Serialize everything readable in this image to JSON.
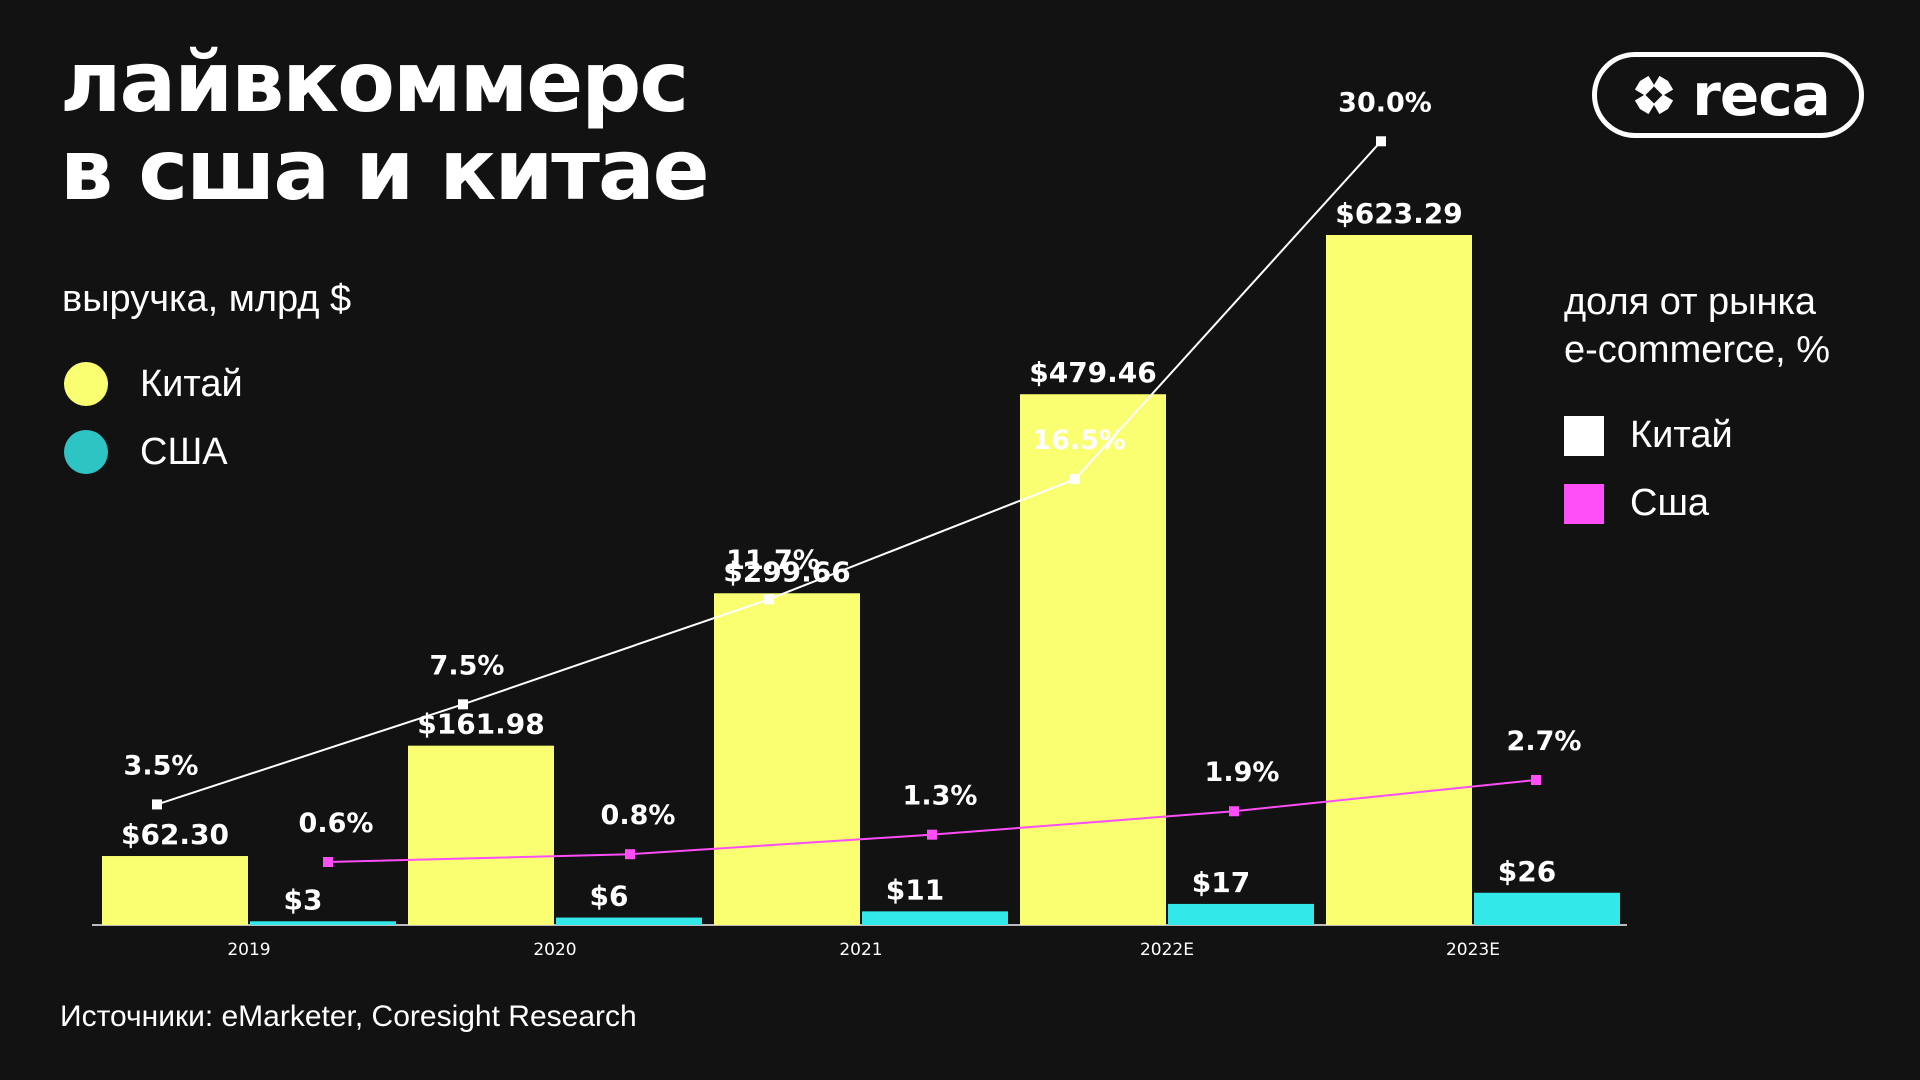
{
  "header": {
    "title_line1": "лайвкоммерс",
    "title_line2": "в сша и китае",
    "logo_text": "reca"
  },
  "left_legend": {
    "label": "выручка, млрд $",
    "items": [
      {
        "label": "Китай",
        "color": "#faff72"
      },
      {
        "label": "США",
        "color": "#2ec4c4"
      }
    ]
  },
  "right_legend": {
    "label_line1": "доля от рынка",
    "label_line2": "e-commerce, %",
    "items": [
      {
        "label": "Китай",
        "color": "#ffffff"
      },
      {
        "label": "Сша",
        "color": "#ff4df8"
      }
    ]
  },
  "footer": {
    "source": "Источники: eMarketer, Coresight Research"
  },
  "chart_data": {
    "type": "bar",
    "categories": [
      "2019",
      "2020",
      "2021",
      "2022E",
      "2023E"
    ],
    "bar_series": [
      {
        "name": "Китай",
        "color": "#faff72",
        "values": [
          62.3,
          161.98,
          299.66,
          479.46,
          623.29
        ],
        "labels": [
          "$62.30",
          "$161.98",
          "$299.66",
          "$479.46",
          "$623.29"
        ]
      },
      {
        "name": "США",
        "color": "#33e8e8",
        "values": [
          3,
          6,
          11,
          17,
          26
        ],
        "labels": [
          "$3",
          "$6",
          "$11",
          "$17",
          "$26"
        ]
      }
    ],
    "line_series": [
      {
        "name": "Китай",
        "color": "#ffffff",
        "values": [
          3.5,
          7.5,
          11.7,
          16.5,
          30.0
        ],
        "labels": [
          "3.5%",
          "7.5%",
          "11.7%",
          "16.5%",
          "30.0%"
        ]
      },
      {
        "name": "Сша",
        "color": "#ff4df8",
        "values": [
          0.6,
          0.8,
          1.3,
          1.9,
          2.7
        ],
        "labels": [
          "0.6%",
          "0.8%",
          "1.3%",
          "1.9%",
          "2.7%"
        ]
      }
    ],
    "ylim_bars": [
      0,
      623.29
    ],
    "ylim_lines": [
      0,
      30
    ],
    "grid": false,
    "legend_position": "left and right"
  }
}
